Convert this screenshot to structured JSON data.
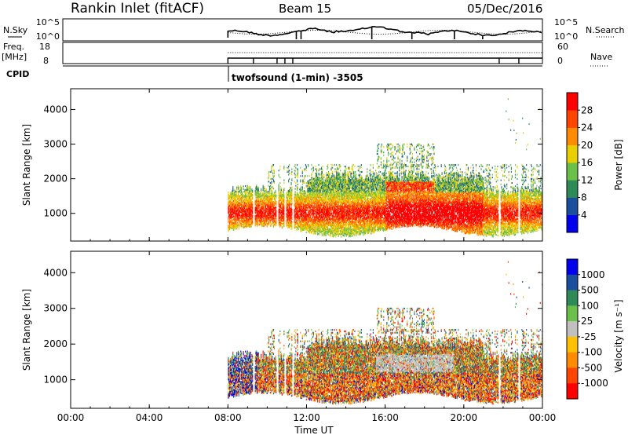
{
  "header": {
    "title": "Rankin Inlet (fitACF)",
    "beam": "Beam 15",
    "date": "05/Dec/2016"
  },
  "top_panels": {
    "nsky_label": "N.Sky",
    "nsky_ticks": [
      "10^5",
      "10^0"
    ],
    "nsearch_label": "N.Search",
    "nsearch_ticks": [
      "10^5",
      "10^0"
    ],
    "freq_label_1": "Freq.",
    "freq_label_2": "[MHz]",
    "freq_ticks": [
      "18",
      "8"
    ],
    "nave_label": "Nave",
    "nave_ticks": [
      "60",
      "0"
    ],
    "cpid_label": "CPID",
    "cpid_text": "twofsound (1-min) -3505"
  },
  "colors": {
    "power_scale": [
      "#0000ee",
      "#1a4fa0",
      "#2e8b57",
      "#6bc04a",
      "#e8d000",
      "#ff8c00",
      "#ff4500",
      "#ff0000"
    ],
    "velocity_scale": [
      "#ff0000",
      "#ff4500",
      "#ff8c00",
      "#ffc000",
      "#c0c0c0",
      "#6bc04a",
      "#2e8b57",
      "#1a4fa0",
      "#0000ee"
    ],
    "ground_scatter": "#c0c0c0"
  },
  "chart_data": [
    {
      "type": "heatmap",
      "panel": "power",
      "ylabel": "Slant Range [km]",
      "yticks": [
        "1000",
        "2000",
        "3000",
        "4000"
      ],
      "ylim": [
        200,
        4600
      ],
      "xlim": [
        "00:00",
        "24:00"
      ],
      "colorbar_label": "Power [dB]",
      "colorbar_ticks": [
        "4",
        "8",
        "12",
        "16",
        "20",
        "24",
        "28"
      ],
      "colorbar_range": [
        0,
        32
      ]
    },
    {
      "type": "heatmap",
      "panel": "velocity",
      "ylabel": "Slant Range [km]",
      "yticks": [
        "1000",
        "2000",
        "3000",
        "4000"
      ],
      "ylim": [
        200,
        4600
      ],
      "xlim": [
        "00:00",
        "24:00"
      ],
      "colorbar_label": "Velocity [m s⁻¹]",
      "colorbar_ticks": [
        "1000",
        "500",
        "100",
        "25",
        "-25",
        "-100",
        "-500",
        "-1000"
      ]
    }
  ],
  "xaxis": {
    "ticks": [
      "00:00",
      "04:00",
      "08:00",
      "12:00",
      "16:00",
      "20:00",
      "00:00"
    ],
    "label": "Time UT"
  },
  "data_start_hour": 8
}
